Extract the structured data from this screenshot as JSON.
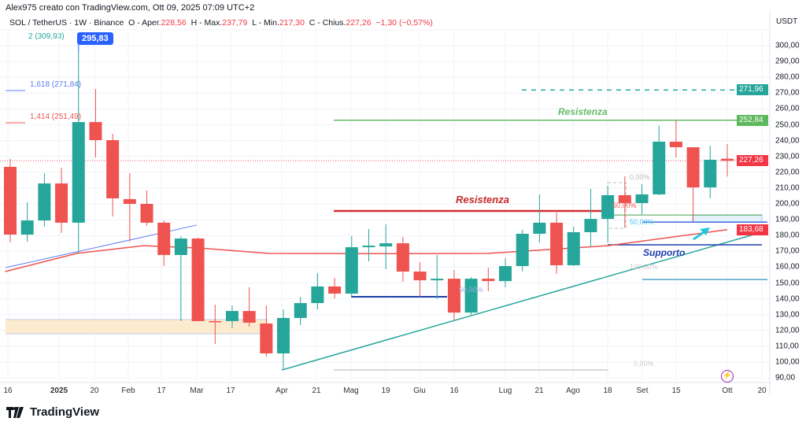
{
  "header": {
    "credit": "Alex975 creato con TradingView.com, Ott 09, 2025 07:09 UTC+2"
  },
  "legend": {
    "symbol": "SOL / TetherUS · 1W · Binance",
    "o_label": "O - Aper.",
    "o": "228,56",
    "h_label": "H - Max.",
    "h": "237,79",
    "l_label": "L - Min.",
    "l": "217,30",
    "c_label": "C - Chius.",
    "c": "227,26",
    "change": "−1,30 (−0,57%)"
  },
  "currency": "USDT",
  "colors": {
    "up": "#26a69a",
    "down": "#ef5350",
    "ma": "#ef5350",
    "support": "#1e3faa",
    "resistance_red": "#d32f2f",
    "resistance_green": "#66bb6a"
  },
  "annotations": {
    "fib_2": "2 (309,93)",
    "fib_1618": "1,618 (271,84)",
    "fib_1414": "1,414 (251,49)",
    "high_callout": "295,83",
    "resistenza_red": "Resistenza",
    "resistenza_green": "Resistenza",
    "supporto": "Supporto",
    "pct_0_a": "0,00%",
    "pct_50_red": "50,00%",
    "pct_50_teal": "50,00%",
    "pct_100": "100,00%",
    "pct_50_mid": "50,00%",
    "pct_0_b": "0,00%"
  },
  "price_labels": [
    {
      "text": "271,96",
      "color": "#26a69a"
    },
    {
      "text": "252,84",
      "color": "#5cb85c"
    },
    {
      "text": "227,26",
      "color": "#f23645"
    },
    {
      "text": "183,68",
      "color": "#f23645"
    }
  ],
  "footer": {
    "brand": "TradingView"
  },
  "icons": {
    "logo": "tradingview-logo",
    "event": "lightning-icon"
  },
  "chart_data": {
    "type": "candlestick",
    "title": "SOL / TetherUS · 1W · Binance",
    "ylabel": "USDT",
    "ylim": [
      86,
      312
    ],
    "y_ticks": [
      "300,00",
      "290,00",
      "280,00",
      "270,00",
      "260,00",
      "250,00",
      "240,00",
      "230,00",
      "220,00",
      "210,00",
      "200,00",
      "190,00",
      "180,00",
      "170,00",
      "160,00",
      "150,00",
      "140,00",
      "130,00",
      "120,00",
      "110,00",
      "100,00",
      "90,00"
    ],
    "x_ticks": [
      "16",
      "2025",
      "20",
      "Feb",
      "17",
      "Mar",
      "17",
      "Apr",
      "21",
      "Mag",
      "19",
      "Giu",
      "16",
      "Lug",
      "21",
      "Ago",
      "18",
      "Set",
      "15",
      "Ott",
      "20"
    ],
    "grid": true,
    "candles": [
      [
        223.4,
        228.4,
        175.6,
        180.6
      ],
      [
        180.6,
        201.0,
        176.1,
        189.5
      ],
      [
        189.5,
        219.4,
        185.6,
        212.9
      ],
      [
        212.9,
        222.9,
        181.6,
        188.1
      ],
      [
        188.1,
        295.83,
        168.7,
        251.7
      ],
      [
        251.7,
        272.6,
        229.4,
        240.3
      ],
      [
        240.3,
        244.3,
        192.0,
        203.5
      ],
      [
        203.0,
        219.4,
        176.1,
        200.0
      ],
      [
        200.0,
        208.5,
        186.1,
        188.1
      ],
      [
        188.1,
        189.5,
        160.7,
        167.7
      ],
      [
        167.7,
        179.6,
        125.9,
        178.1
      ],
      [
        178.1,
        178.6,
        125.9,
        125.9
      ],
      [
        125.9,
        136.3,
        111.4,
        125.4
      ],
      [
        125.9,
        135.8,
        121.4,
        132.3
      ],
      [
        132.3,
        147.3,
        122.4,
        124.9
      ],
      [
        124.4,
        135.8,
        103.5,
        105.5
      ],
      [
        105.5,
        133.3,
        95.0,
        127.9
      ],
      [
        127.9,
        141.3,
        123.4,
        137.3
      ],
      [
        137.3,
        156.2,
        133.3,
        147.8
      ],
      [
        147.8,
        153.2,
        140.3,
        143.3
      ],
      [
        143.3,
        179.6,
        140.8,
        172.6
      ],
      [
        172.6,
        184.1,
        163.7,
        173.6
      ],
      [
        173.1,
        187.1,
        158.7,
        175.1
      ],
      [
        175.1,
        179.1,
        150.7,
        157.2
      ],
      [
        157.2,
        163.2,
        141.3,
        151.7
      ],
      [
        151.7,
        167.7,
        139.8,
        152.7
      ],
      [
        152.7,
        158.2,
        126.4,
        131.3
      ],
      [
        131.3,
        153.7,
        129.9,
        152.7
      ],
      [
        152.7,
        159.7,
        144.8,
        151.2
      ],
      [
        151.2,
        165.7,
        147.3,
        160.7
      ],
      [
        160.7,
        183.6,
        157.2,
        181.1
      ],
      [
        181.1,
        206.0,
        175.6,
        188.1
      ],
      [
        188.1,
        194.5,
        155.7,
        161.2
      ],
      [
        161.2,
        185.6,
        160.7,
        182.1
      ],
      [
        182.1,
        209.5,
        173.1,
        190.5
      ],
      [
        190.5,
        211.4,
        175.6,
        205.5
      ],
      [
        205.5,
        217.4,
        185.1,
        200.5
      ],
      [
        200.5,
        212.4,
        193.5,
        206.0
      ],
      [
        206.0,
        249.3,
        205.5,
        239.3
      ],
      [
        239.3,
        252.8,
        229.4,
        235.8
      ],
      [
        235.8,
        235.8,
        188.6,
        210.4
      ],
      [
        210.4,
        236.8,
        203.5,
        227.9
      ],
      [
        228.56,
        237.79,
        217.3,
        227.26
      ]
    ],
    "candle_fields": [
      "open",
      "high",
      "low",
      "close"
    ],
    "moving_average": [
      [
        -0.3,
        157.2
      ],
      [
        3.9,
        168.7
      ],
      [
        7.8,
        173.6
      ],
      [
        11.1,
        172.1
      ],
      [
        15.1,
        168.7
      ],
      [
        22,
        168.5
      ],
      [
        28,
        168.7
      ],
      [
        35,
        173.6
      ],
      [
        42,
        183.68
      ]
    ],
    "levels": {
      "resistance_upper": 252.84,
      "target": 271.96,
      "resistance_lower": 195.5,
      "support": 174.1,
      "last_price": 227.26,
      "ma_last": 183.68
    }
  }
}
